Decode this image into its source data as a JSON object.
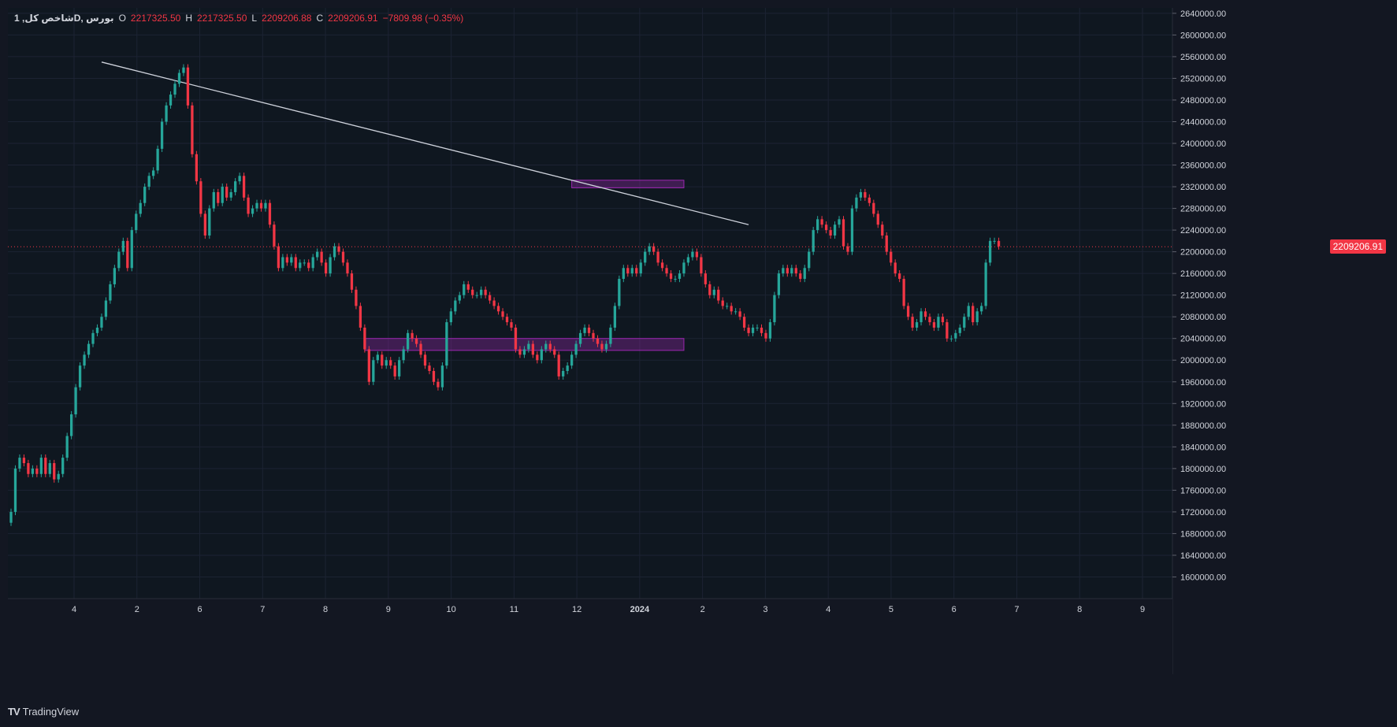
{
  "header": {
    "symbol": "شاخص کل, 1D, بورس",
    "open_label": "O",
    "open": "2217325.50",
    "high_label": "H",
    "high": "2217325.50",
    "low_label": "L",
    "low": "2209206.88",
    "close_label": "C",
    "close": "2209206.91",
    "change": "−7809.98 (−0.35%)"
  },
  "brand": {
    "name": "TradingView"
  },
  "colors": {
    "up": "#26a69a",
    "down": "#f23645",
    "zone": "#9c27b0",
    "trend": "#cfd3dc",
    "grid": "#1c2333"
  },
  "chart_data": {
    "type": "candlestick",
    "title": "شاخص کل",
    "ylim": [
      1560000,
      2650000
    ],
    "y_ticks": [
      "2640000.00",
      "2600000.00",
      "2560000.00",
      "2520000.00",
      "2480000.00",
      "2440000.00",
      "2400000.00",
      "2360000.00",
      "2320000.00",
      "2280000.00",
      "2240000.00",
      "2200000.00",
      "2160000.00",
      "2120000.00",
      "2080000.00",
      "2040000.00",
      "2000000.00",
      "1960000.00",
      "1920000.00",
      "1880000.00",
      "1840000.00",
      "1800000.00",
      "1760000.00",
      "1720000.00",
      "1680000.00",
      "1640000.00",
      "1600000.00"
    ],
    "x_ticks": [
      "4",
      "2",
      "6",
      "7",
      "8",
      "9",
      "10",
      "11",
      "12",
      "2024",
      "2",
      "3",
      "4",
      "5",
      "6",
      "7",
      "8",
      "9"
    ],
    "last_price": "2209206.91",
    "closes": [
      1720000,
      1800000,
      1820000,
      1810000,
      1790000,
      1800000,
      1790000,
      1820000,
      1790000,
      1810000,
      1780000,
      1790000,
      1820000,
      1860000,
      1900000,
      1950000,
      1990000,
      2010000,
      2030000,
      2050000,
      2060000,
      2080000,
      2110000,
      2140000,
      2170000,
      2200000,
      2220000,
      2170000,
      2240000,
      2270000,
      2290000,
      2320000,
      2340000,
      2350000,
      2390000,
      2440000,
      2470000,
      2490000,
      2510000,
      2530000,
      2540000,
      2470000,
      2380000,
      2330000,
      2270000,
      2230000,
      2280000,
      2310000,
      2290000,
      2320000,
      2300000,
      2310000,
      2330000,
      2340000,
      2300000,
      2270000,
      2280000,
      2290000,
      2280000,
      2290000,
      2250000,
      2210000,
      2170000,
      2190000,
      2180000,
      2190000,
      2170000,
      2180000,
      2180000,
      2170000,
      2190000,
      2200000,
      2180000,
      2160000,
      2190000,
      2210000,
      2200000,
      2180000,
      2160000,
      2130000,
      2100000,
      2060000,
      2020000,
      1960000,
      2000000,
      2010000,
      1990000,
      2000000,
      1990000,
      1970000,
      2000000,
      2020000,
      2050000,
      2040000,
      2030000,
      2010000,
      1990000,
      1980000,
      1960000,
      1950000,
      1990000,
      2070000,
      2090000,
      2110000,
      2120000,
      2140000,
      2130000,
      2120000,
      2120000,
      2130000,
      2120000,
      2110000,
      2100000,
      2090000,
      2080000,
      2070000,
      2060000,
      2020000,
      2010000,
      2020000,
      2030000,
      2010000,
      2000000,
      2020000,
      2030000,
      2020000,
      2010000,
      1970000,
      1980000,
      1990000,
      2010000,
      2030000,
      2050000,
      2060000,
      2050000,
      2040000,
      2030000,
      2020000,
      2030000,
      2060000,
      2100000,
      2150000,
      2170000,
      2160000,
      2170000,
      2160000,
      2180000,
      2200000,
      2210000,
      2200000,
      2180000,
      2170000,
      2160000,
      2150000,
      2150000,
      2160000,
      2180000,
      2190000,
      2200000,
      2190000,
      2160000,
      2140000,
      2120000,
      2130000,
      2110000,
      2100000,
      2100000,
      2090000,
      2090000,
      2080000,
      2060000,
      2050000,
      2060000,
      2060000,
      2050000,
      2040000,
      2070000,
      2120000,
      2160000,
      2170000,
      2160000,
      2170000,
      2160000,
      2150000,
      2170000,
      2200000,
      2240000,
      2260000,
      2250000,
      2240000,
      2230000,
      2250000,
      2260000,
      2210000,
      2200000,
      2280000,
      2300000,
      2310000,
      2300000,
      2290000,
      2270000,
      2250000,
      2230000,
      2200000,
      2180000,
      2160000,
      2150000,
      2100000,
      2080000,
      2060000,
      2070000,
      2090000,
      2080000,
      2070000,
      2060000,
      2080000,
      2070000,
      2040000,
      2040000,
      2050000,
      2060000,
      2080000,
      2100000,
      2070000,
      2090000,
      2100000,
      2180000,
      2220000,
      2220000,
      2210000
    ]
  },
  "overlays": {
    "trendline": {
      "from": [
        21,
        2550000
      ],
      "to": [
        171,
        2250000
      ]
    },
    "zones": [
      {
        "name": "resistance-zone",
        "x_from": 130,
        "x_to": 156,
        "y_from": 2318000,
        "y_to": 2332000
      },
      {
        "name": "support-zone",
        "x_from": 82,
        "x_to": 156,
        "y_from": 2018000,
        "y_to": 2040000
      }
    ]
  }
}
